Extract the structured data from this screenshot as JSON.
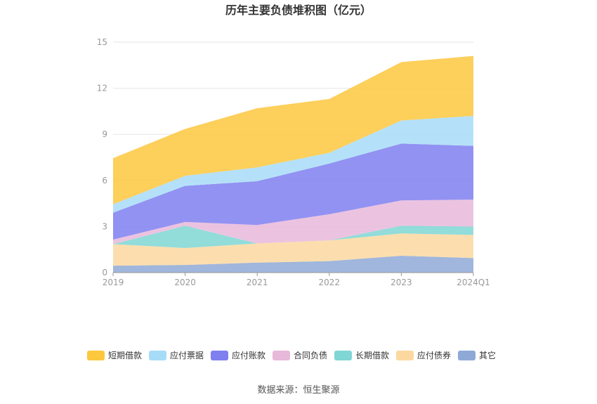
{
  "chart_data": {
    "type": "area",
    "stacked": true,
    "title": "历年主要负债堆积图（亿元）",
    "x": [
      "2019",
      "2020",
      "2021",
      "2022",
      "2023",
      "2024Q1"
    ],
    "ylim": [
      0,
      15
    ],
    "yticks": [
      "0",
      "3",
      "6",
      "9",
      "12",
      "15"
    ],
    "grid": true,
    "legend_position": "bottom",
    "series": [
      {
        "name": "其它",
        "color": "#8fa9d6",
        "values": [
          0.45,
          0.5,
          0.65,
          0.75,
          1.1,
          0.95
        ]
      },
      {
        "name": "应付债券",
        "color": "#fcd8a0",
        "values": [
          1.4,
          1.1,
          1.25,
          1.35,
          1.45,
          1.5
        ]
      },
      {
        "name": "长期借款",
        "color": "#7fd6d4",
        "values": [
          0.0,
          1.45,
          0.0,
          0.0,
          0.5,
          0.55
        ]
      },
      {
        "name": "合同负债",
        "color": "#e8b8da",
        "values": [
          0.3,
          0.25,
          1.2,
          1.7,
          1.65,
          1.75
        ]
      },
      {
        "name": "应付账款",
        "color": "#7f7ff0",
        "values": [
          1.75,
          2.35,
          2.85,
          3.3,
          3.7,
          3.5
        ]
      },
      {
        "name": "应付票据",
        "color": "#a7dcf8",
        "values": [
          0.55,
          0.65,
          0.9,
          0.7,
          1.5,
          1.95
        ]
      },
      {
        "name": "短期借款",
        "color": "#fdc73e",
        "values": [
          3.0,
          3.05,
          3.85,
          3.5,
          3.8,
          3.9
        ]
      }
    ],
    "legend_order": [
      "短期借款",
      "应付票据",
      "应付账款",
      "合同负债",
      "长期借款",
      "应付债券",
      "其它"
    ]
  },
  "source_text": "数据来源：恒生聚源"
}
